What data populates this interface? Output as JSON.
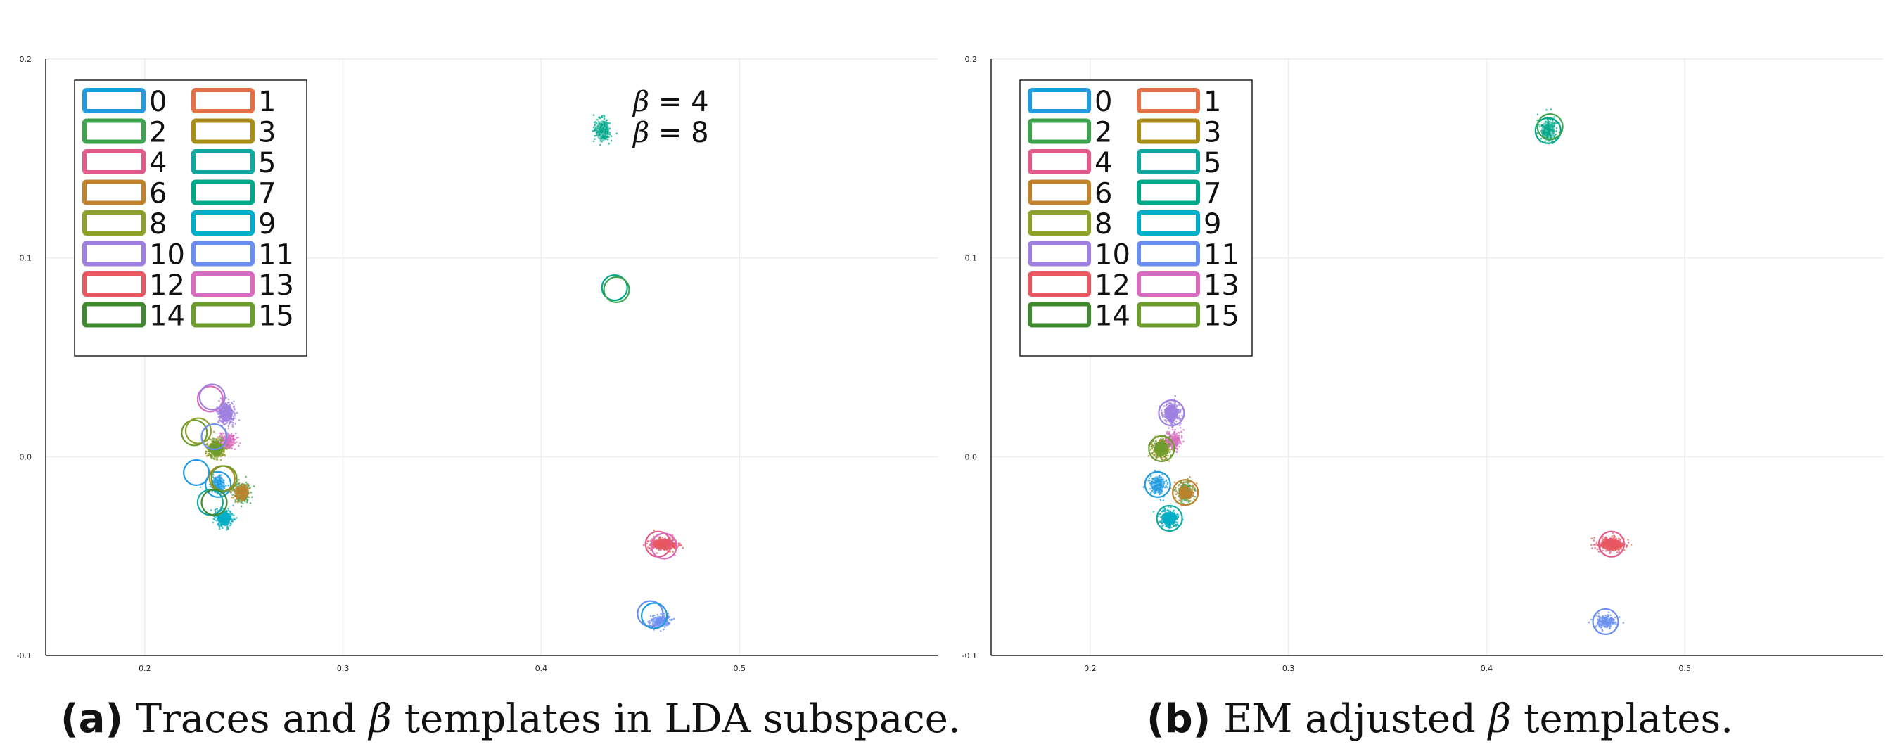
{
  "palette": [
    "#1f9be0",
    "#e26f46",
    "#3da44d",
    "#a98d19",
    "#e25a8a",
    "#12a8a2",
    "#c0822a",
    "#00a88a",
    "#8ea12b",
    "#00aecb",
    "#9f7fe0",
    "#6b8ff0",
    "#e8575f",
    "#d86bc0",
    "#3f8a2e",
    "#6c9c2c"
  ],
  "panels": [
    {
      "key": "a",
      "caption": {
        "label": "(a)",
        "text_before": "Traces and ",
        "symbol": "β",
        "text_after": " templates in LDA subspace."
      },
      "annotation": [
        {
          "symbol": "β",
          "text": " = 4"
        },
        {
          "symbol": "β",
          "text": " = 8"
        }
      ]
    },
    {
      "key": "b",
      "caption": {
        "label": "(b)",
        "text_before": "EM adjusted ",
        "symbol": "β",
        "text_after": " templates."
      },
      "annotation": []
    }
  ],
  "chart_data": [
    {
      "type": "scatter",
      "title": "",
      "xlabel": "",
      "ylabel": "",
      "xlim": [
        0.15,
        0.6
      ],
      "ylim": [
        -0.1,
        0.2
      ],
      "xticks": [
        "0.2",
        "0.3",
        "0.4",
        "0.5"
      ],
      "yticks": [
        "-0.1",
        "0.0",
        "0.1",
        "0.2"
      ],
      "xtick_values": [
        0.2,
        0.3,
        0.4,
        0.5
      ],
      "ytick_values": [
        -0.1,
        0.0,
        0.1,
        0.2
      ],
      "grid": true,
      "legend": {
        "placement": "top-left",
        "columns": 2,
        "entries": [
          "0",
          "1",
          "2",
          "3",
          "4",
          "5",
          "6",
          "7",
          "8",
          "9",
          "10",
          "11",
          "12",
          "13",
          "14",
          "15"
        ]
      },
      "clusters": [
        {
          "series": "0",
          "center": [
            0.237,
            -0.014
          ],
          "spread": [
            0.004,
            0.005
          ],
          "color": 0
        },
        {
          "series": "1",
          "center": [
            0.462,
            -0.044
          ],
          "spread": [
            0.006,
            0.003
          ],
          "color": 1
        },
        {
          "series": "2",
          "center": [
            0.249,
            -0.018
          ],
          "spread": [
            0.004,
            0.005
          ],
          "color": 2
        },
        {
          "series": "3",
          "center": [
            0.241,
            0.022
          ],
          "spread": [
            0.004,
            0.005
          ],
          "color": 10
        },
        {
          "series": "4",
          "center": [
            0.236,
            0.004
          ],
          "spread": [
            0.004,
            0.004
          ],
          "color": 3
        },
        {
          "series": "5",
          "center": [
            0.24,
            -0.031
          ],
          "spread": [
            0.004,
            0.004
          ],
          "color": 5
        },
        {
          "series": "6",
          "center": [
            0.462,
            -0.044
          ],
          "spread": [
            0.006,
            0.003
          ],
          "color": 4
        },
        {
          "series": "7",
          "center": [
            0.249,
            -0.018
          ],
          "spread": [
            0.004,
            0.004
          ],
          "color": 6
        },
        {
          "series": "8",
          "center": [
            0.431,
            0.164
          ],
          "spread": [
            0.004,
            0.006
          ],
          "color": 7
        },
        {
          "series": "9",
          "center": [
            0.236,
            0.004
          ],
          "spread": [
            0.004,
            0.004
          ],
          "color": 8
        },
        {
          "series": "10",
          "center": [
            0.24,
            -0.031
          ],
          "spread": [
            0.004,
            0.004
          ],
          "color": 9
        },
        {
          "series": "11",
          "center": [
            0.241,
            0.022
          ],
          "spread": [
            0.004,
            0.005
          ],
          "color": 10
        },
        {
          "series": "12",
          "center": [
            0.46,
            -0.083
          ],
          "spread": [
            0.005,
            0.003
          ],
          "color": 11
        },
        {
          "series": "13",
          "center": [
            0.462,
            -0.044
          ],
          "spread": [
            0.006,
            0.003
          ],
          "color": 12
        },
        {
          "series": "14",
          "center": [
            0.242,
            0.008
          ],
          "spread": [
            0.004,
            0.004
          ],
          "color": 13
        },
        {
          "series": "15",
          "center": [
            0.236,
            0.004
          ],
          "spread": [
            0.004,
            0.004
          ],
          "color": 15
        }
      ],
      "templates": [
        {
          "center": [
            0.226,
            -0.008
          ],
          "color": 0
        },
        {
          "center": [
            0.237,
            -0.014
          ],
          "color": 0
        },
        {
          "center": [
            0.233,
            0.029
          ],
          "color": 13
        },
        {
          "center": [
            0.234,
            0.03
          ],
          "color": 10
        },
        {
          "center": [
            0.225,
            0.012
          ],
          "color": 15
        },
        {
          "center": [
            0.227,
            0.013
          ],
          "color": 8
        },
        {
          "center": [
            0.235,
            0.01
          ],
          "color": 11
        },
        {
          "center": [
            0.239,
            -0.011
          ],
          "color": 3
        },
        {
          "center": [
            0.24,
            -0.011
          ],
          "color": 15
        },
        {
          "center": [
            0.233,
            -0.023
          ],
          "color": 5
        },
        {
          "center": [
            0.235,
            -0.023
          ],
          "color": 14
        },
        {
          "center": [
            0.437,
            0.085
          ],
          "color": 7
        },
        {
          "center": [
            0.438,
            0.084
          ],
          "color": 2
        },
        {
          "center": [
            0.459,
            -0.044
          ],
          "color": 4
        },
        {
          "center": [
            0.462,
            -0.045
          ],
          "color": 13
        },
        {
          "center": [
            0.455,
            -0.079
          ],
          "color": 11
        },
        {
          "center": [
            0.457,
            -0.08
          ],
          "color": 0
        }
      ]
    },
    {
      "type": "scatter",
      "title": "",
      "xlabel": "",
      "ylabel": "",
      "xlim": [
        0.15,
        0.6
      ],
      "ylim": [
        -0.1,
        0.2
      ],
      "xticks": [
        "0.2",
        "0.3",
        "0.4",
        "0.5"
      ],
      "yticks": [
        "-0.1",
        "0.0",
        "0.1",
        "0.2"
      ],
      "xtick_values": [
        0.2,
        0.3,
        0.4,
        0.5
      ],
      "ytick_values": [
        -0.1,
        0.0,
        0.1,
        0.2
      ],
      "grid": true,
      "legend": {
        "placement": "top-left",
        "columns": 2,
        "entries": [
          "0",
          "1",
          "2",
          "3",
          "4",
          "5",
          "6",
          "7",
          "8",
          "9",
          "10",
          "11",
          "12",
          "13",
          "14",
          "15"
        ]
      },
      "clusters": [
        {
          "series": "0",
          "center": [
            0.234,
            -0.014
          ],
          "spread": [
            0.004,
            0.005
          ],
          "color": 0
        },
        {
          "series": "1",
          "center": [
            0.463,
            -0.044
          ],
          "spread": [
            0.006,
            0.003
          ],
          "color": 1
        },
        {
          "series": "2",
          "center": [
            0.248,
            -0.018
          ],
          "spread": [
            0.004,
            0.005
          ],
          "color": 2
        },
        {
          "series": "3",
          "center": [
            0.241,
            0.022
          ],
          "spread": [
            0.004,
            0.005
          ],
          "color": 10
        },
        {
          "series": "4",
          "center": [
            0.236,
            0.004
          ],
          "spread": [
            0.004,
            0.004
          ],
          "color": 3
        },
        {
          "series": "5",
          "center": [
            0.24,
            -0.031
          ],
          "spread": [
            0.004,
            0.004
          ],
          "color": 5
        },
        {
          "series": "6",
          "center": [
            0.463,
            -0.044
          ],
          "spread": [
            0.006,
            0.003
          ],
          "color": 4
        },
        {
          "series": "7",
          "center": [
            0.248,
            -0.018
          ],
          "spread": [
            0.004,
            0.004
          ],
          "color": 6
        },
        {
          "series": "8",
          "center": [
            0.431,
            0.164
          ],
          "spread": [
            0.004,
            0.006
          ],
          "color": 7
        },
        {
          "series": "9",
          "center": [
            0.236,
            0.004
          ],
          "spread": [
            0.004,
            0.004
          ],
          "color": 8
        },
        {
          "series": "10",
          "center": [
            0.24,
            -0.031
          ],
          "spread": [
            0.004,
            0.004
          ],
          "color": 9
        },
        {
          "series": "11",
          "center": [
            0.241,
            0.022
          ],
          "spread": [
            0.004,
            0.005
          ],
          "color": 10
        },
        {
          "series": "12",
          "center": [
            0.46,
            -0.083
          ],
          "spread": [
            0.005,
            0.003
          ],
          "color": 11
        },
        {
          "series": "13",
          "center": [
            0.463,
            -0.044
          ],
          "spread": [
            0.006,
            0.003
          ],
          "color": 12
        },
        {
          "series": "14",
          "center": [
            0.242,
            0.008
          ],
          "spread": [
            0.004,
            0.004
          ],
          "color": 13
        },
        {
          "series": "15",
          "center": [
            0.236,
            0.004
          ],
          "spread": [
            0.004,
            0.004
          ],
          "color": 15
        }
      ],
      "templates": [
        {
          "center": [
            0.234,
            -0.014
          ],
          "color": 0
        },
        {
          "center": [
            0.241,
            0.022
          ],
          "color": 10
        },
        {
          "center": [
            0.236,
            0.004
          ],
          "color": 15
        },
        {
          "center": [
            0.248,
            -0.018
          ],
          "color": 6
        },
        {
          "center": [
            0.24,
            -0.031
          ],
          "color": 5
        },
        {
          "center": [
            0.431,
            0.164
          ],
          "color": 7
        },
        {
          "center": [
            0.432,
            0.166
          ],
          "color": 2
        },
        {
          "center": [
            0.463,
            -0.044
          ],
          "color": 4
        },
        {
          "center": [
            0.46,
            -0.083
          ],
          "color": 11
        }
      ]
    }
  ]
}
